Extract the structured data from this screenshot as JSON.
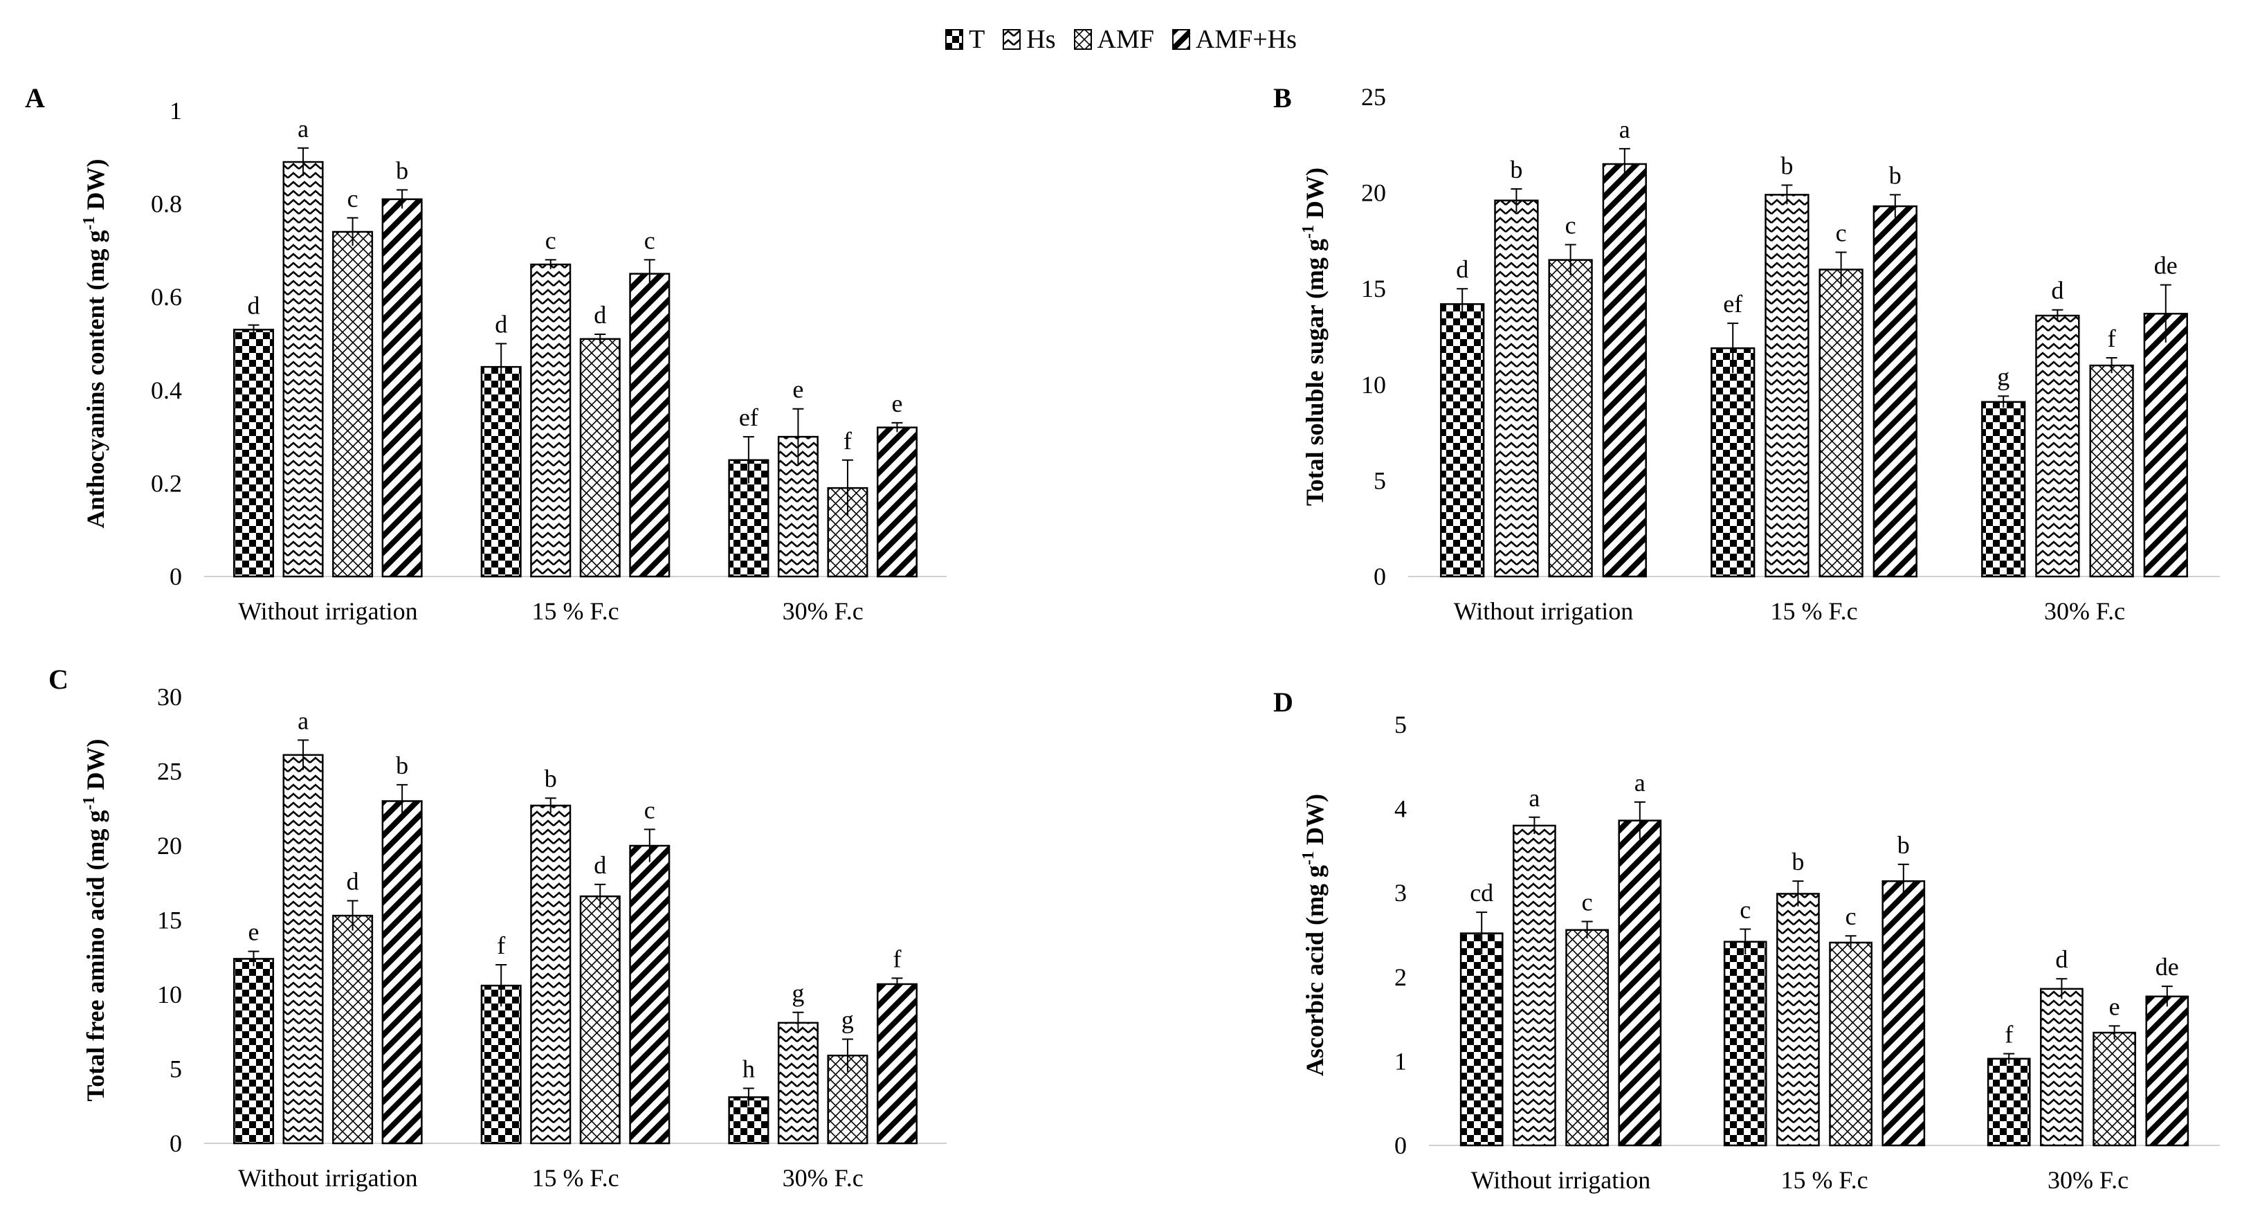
{
  "legend": {
    "entries": [
      {
        "name": "T",
        "pattern": "checker"
      },
      {
        "name": "Hs",
        "pattern": "zigzag"
      },
      {
        "name": "AMF",
        "pattern": "crosshatch"
      },
      {
        "name": "AMF+Hs",
        "pattern": "diagonal"
      }
    ]
  },
  "colors": {
    "ink": "#000000",
    "axis": "#d0d0d0",
    "background": "#ffffff"
  },
  "chart_data": [
    {
      "panel": "A",
      "type": "bar",
      "categories": [
        "Without irrigation",
        "15 % F.c",
        "30% F.c"
      ],
      "ylabel_main": "Anthocyanins  content (mg g",
      "ylabel_sup": "-1",
      "ylabel_tail": " DW)",
      "ylim": [
        0,
        1
      ],
      "yticks": [
        "0",
        "0.2",
        "0.4",
        "0.6",
        "0.8",
        "1"
      ],
      "ytick_values": [
        0,
        0.2,
        0.4,
        0.6,
        0.8,
        1
      ],
      "series": [
        {
          "name": "T",
          "values": [
            0.53,
            0.45,
            0.25
          ],
          "errors": [
            0.01,
            0.05,
            0.05
          ],
          "letters": [
            "d",
            "d",
            "ef"
          ]
        },
        {
          "name": "Hs",
          "values": [
            0.89,
            0.67,
            0.3
          ],
          "errors": [
            0.03,
            0.01,
            0.06
          ],
          "letters": [
            "a",
            "c",
            "e"
          ]
        },
        {
          "name": "AMF",
          "values": [
            0.74,
            0.51,
            0.19
          ],
          "errors": [
            0.03,
            0.01,
            0.06
          ],
          "letters": [
            "c",
            "d",
            "f"
          ]
        },
        {
          "name": "AMF+Hs",
          "values": [
            0.81,
            0.65,
            0.32
          ],
          "errors": [
            0.02,
            0.03,
            0.01
          ],
          "letters": [
            "b",
            "c",
            "e"
          ]
        }
      ]
    },
    {
      "panel": "B",
      "type": "bar",
      "categories": [
        "Without irrigation",
        "15 % F.c",
        "30% F.c"
      ],
      "ylabel_main": "Total soluble sugar (mg g",
      "ylabel_sup": "-1",
      "ylabel_tail": " DW)",
      "ylim": [
        0,
        25
      ],
      "yticks": [
        "0",
        "5",
        "10",
        "15",
        "20",
        "25"
      ],
      "ytick_values": [
        0,
        5,
        10,
        15,
        20,
        25
      ],
      "series": [
        {
          "name": "T",
          "values": [
            14.2,
            11.9,
            9.1
          ],
          "errors": [
            0.8,
            1.3,
            0.3
          ],
          "letters": [
            "d",
            "ef",
            "g"
          ]
        },
        {
          "name": "Hs",
          "values": [
            19.6,
            19.9,
            13.6
          ],
          "errors": [
            0.6,
            0.5,
            0.3
          ],
          "letters": [
            "b",
            "b",
            "d"
          ]
        },
        {
          "name": "AMF",
          "values": [
            16.5,
            16.0,
            11.0
          ],
          "errors": [
            0.8,
            0.9,
            0.4
          ],
          "letters": [
            "c",
            "c",
            "f"
          ]
        },
        {
          "name": "AMF+Hs",
          "values": [
            21.5,
            19.3,
            13.7
          ],
          "errors": [
            0.8,
            0.6,
            1.5
          ],
          "letters": [
            "a",
            "b",
            "de"
          ]
        }
      ]
    },
    {
      "panel": "C",
      "type": "bar",
      "categories": [
        "Without irrigation",
        "15 % F.c",
        "30% F.c"
      ],
      "ylabel_main": "Total free amino  acid (mg g",
      "ylabel_sup": "-1",
      "ylabel_tail": " DW)",
      "ylim": [
        0,
        30
      ],
      "yticks": [
        "0",
        "5",
        "10",
        "15",
        "20",
        "25",
        "30"
      ],
      "ytick_values": [
        0,
        5,
        10,
        15,
        20,
        25,
        30
      ],
      "series": [
        {
          "name": "T",
          "values": [
            12.4,
            10.6,
            3.1
          ],
          "errors": [
            0.5,
            1.4,
            0.6
          ],
          "letters": [
            "e",
            "f",
            "h"
          ]
        },
        {
          "name": "Hs",
          "values": [
            26.1,
            22.7,
            8.1
          ],
          "errors": [
            1.0,
            0.5,
            0.7
          ],
          "letters": [
            "a",
            "b",
            "g"
          ]
        },
        {
          "name": "AMF",
          "values": [
            15.3,
            16.6,
            5.9
          ],
          "errors": [
            1.0,
            0.8,
            1.1
          ],
          "letters": [
            "d",
            "d",
            "g"
          ]
        },
        {
          "name": "AMF+Hs",
          "values": [
            23.0,
            20.0,
            10.7
          ],
          "errors": [
            1.1,
            1.1,
            0.4
          ],
          "letters": [
            "b",
            "c",
            "f"
          ]
        }
      ]
    },
    {
      "panel": "D",
      "type": "bar",
      "categories": [
        "Without irrigation",
        "15 % F.c",
        "30% F.c"
      ],
      "ylabel_main": "Ascorbic acid (mg g",
      "ylabel_sup": "-1",
      "ylabel_tail": " DW)",
      "ylim": [
        0,
        5
      ],
      "yticks": [
        "0",
        "1",
        "2",
        "3",
        "4",
        "5"
      ],
      "ytick_values": [
        0,
        1,
        2,
        3,
        4,
        5
      ],
      "series": [
        {
          "name": "T",
          "values": [
            2.52,
            2.42,
            1.03
          ],
          "errors": [
            0.25,
            0.15,
            0.06
          ],
          "letters": [
            "cd",
            "c",
            "f"
          ]
        },
        {
          "name": "Hs",
          "values": [
            3.8,
            2.99,
            1.86
          ],
          "errors": [
            0.1,
            0.15,
            0.12
          ],
          "letters": [
            "a",
            "b",
            "d"
          ]
        },
        {
          "name": "AMF",
          "values": [
            2.56,
            2.41,
            1.34
          ],
          "errors": [
            0.1,
            0.08,
            0.08
          ],
          "letters": [
            "c",
            "c",
            "e"
          ]
        },
        {
          "name": "AMF+Hs",
          "values": [
            3.86,
            3.14,
            1.77
          ],
          "errors": [
            0.22,
            0.2,
            0.12
          ],
          "letters": [
            "a",
            "b",
            "de"
          ]
        }
      ]
    }
  ]
}
